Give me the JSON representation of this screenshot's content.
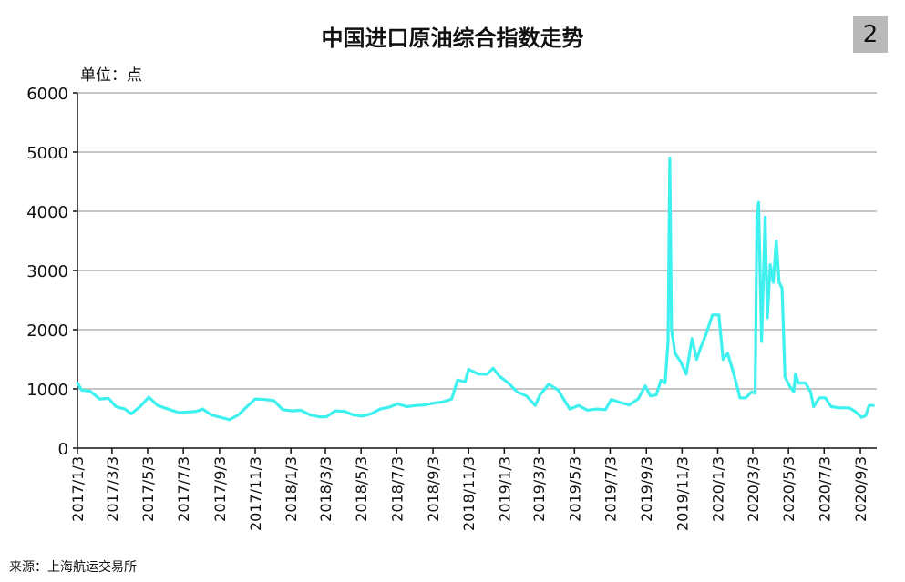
{
  "badge": "2",
  "unit": "单位：点",
  "source": "来源：上海航运交易所",
  "colors": {
    "line": "#3ef0ee",
    "grid": "#b4b4b4",
    "axis": "#111111"
  },
  "chart_data": {
    "type": "line",
    "title": "中国进口原油综合指数走势",
    "xlabel": "",
    "ylabel": "",
    "ylim": [
      0,
      6000
    ],
    "yticks": [
      0,
      1000,
      2000,
      3000,
      4000,
      5000,
      6000
    ],
    "grid": true,
    "legend": "none",
    "x_ticks": [
      "2017/1/3",
      "2017/3/3",
      "2017/5/3",
      "2017/7/3",
      "2017/9/3",
      "2017/11/3",
      "2018/1/3",
      "2018/3/3",
      "2018/5/3",
      "2018/7/3",
      "2018/9/3",
      "2018/11/3",
      "2019/1/3",
      "2019/3/3",
      "2019/5/3",
      "2019/7/3",
      "2019/9/3",
      "2019/11/3",
      "2020/1/3",
      "2020/3/3",
      "2020/5/3",
      "2020/7/3",
      "2020/9/3"
    ],
    "series": [
      {
        "name": "",
        "points": [
          [
            "2017-01-03",
            1100
          ],
          [
            "2017-01-10",
            980
          ],
          [
            "2017-01-25",
            960
          ],
          [
            "2017-02-10",
            830
          ],
          [
            "2017-02-25",
            840
          ],
          [
            "2017-03-10",
            700
          ],
          [
            "2017-03-25",
            660
          ],
          [
            "2017-04-05",
            580
          ],
          [
            "2017-04-20",
            700
          ],
          [
            "2017-05-05",
            860
          ],
          [
            "2017-05-20",
            720
          ],
          [
            "2017-06-10",
            650
          ],
          [
            "2017-06-25",
            600
          ],
          [
            "2017-07-10",
            610
          ],
          [
            "2017-07-25",
            620
          ],
          [
            "2017-08-05",
            660
          ],
          [
            "2017-08-20",
            560
          ],
          [
            "2017-09-05",
            520
          ],
          [
            "2017-09-20",
            480
          ],
          [
            "2017-10-05",
            560
          ],
          [
            "2017-10-20",
            700
          ],
          [
            "2017-11-03",
            830
          ],
          [
            "2017-11-20",
            820
          ],
          [
            "2017-12-05",
            800
          ],
          [
            "2017-12-20",
            650
          ],
          [
            "2018-01-05",
            630
          ],
          [
            "2018-01-20",
            640
          ],
          [
            "2018-02-05",
            560
          ],
          [
            "2018-02-20",
            530
          ],
          [
            "2018-03-05",
            530
          ],
          [
            "2018-03-20",
            630
          ],
          [
            "2018-04-05",
            620
          ],
          [
            "2018-04-20",
            560
          ],
          [
            "2018-05-05",
            540
          ],
          [
            "2018-05-20",
            580
          ],
          [
            "2018-06-05",
            660
          ],
          [
            "2018-06-20",
            690
          ],
          [
            "2018-07-05",
            750
          ],
          [
            "2018-07-20",
            700
          ],
          [
            "2018-08-05",
            720
          ],
          [
            "2018-08-20",
            730
          ],
          [
            "2018-09-05",
            760
          ],
          [
            "2018-09-20",
            780
          ],
          [
            "2018-10-05",
            830
          ],
          [
            "2018-10-15",
            1150
          ],
          [
            "2018-10-28",
            1120
          ],
          [
            "2018-11-03",
            1330
          ],
          [
            "2018-11-20",
            1250
          ],
          [
            "2018-12-05",
            1250
          ],
          [
            "2018-12-15",
            1350
          ],
          [
            "2018-12-25",
            1220
          ],
          [
            "2019-01-10",
            1100
          ],
          [
            "2019-01-25",
            950
          ],
          [
            "2019-02-10",
            880
          ],
          [
            "2019-02-25",
            720
          ],
          [
            "2019-03-05",
            900
          ],
          [
            "2019-03-20",
            1080
          ],
          [
            "2019-04-05",
            980
          ],
          [
            "2019-04-15",
            820
          ],
          [
            "2019-04-25",
            660
          ],
          [
            "2019-05-10",
            720
          ],
          [
            "2019-05-25",
            640
          ],
          [
            "2019-06-10",
            660
          ],
          [
            "2019-06-25",
            650
          ],
          [
            "2019-07-05",
            820
          ],
          [
            "2019-07-20",
            770
          ],
          [
            "2019-08-05",
            730
          ],
          [
            "2019-08-20",
            830
          ],
          [
            "2019-09-01",
            1050
          ],
          [
            "2019-09-10",
            880
          ],
          [
            "2019-09-20",
            900
          ],
          [
            "2019-09-28",
            1150
          ],
          [
            "2019-10-05",
            1100
          ],
          [
            "2019-10-10",
            1800
          ],
          [
            "2019-10-13",
            4900
          ],
          [
            "2019-10-16",
            2000
          ],
          [
            "2019-10-22",
            1600
          ],
          [
            "2019-11-01",
            1450
          ],
          [
            "2019-11-10",
            1250
          ],
          [
            "2019-11-20",
            1850
          ],
          [
            "2019-11-28",
            1500
          ],
          [
            "2019-12-05",
            1700
          ],
          [
            "2019-12-15",
            1950
          ],
          [
            "2019-12-25",
            2250
          ],
          [
            "2020-01-05",
            2250
          ],
          [
            "2020-01-12",
            1500
          ],
          [
            "2020-01-20",
            1600
          ],
          [
            "2020-02-01",
            1200
          ],
          [
            "2020-02-10",
            850
          ],
          [
            "2020-02-20",
            850
          ],
          [
            "2020-03-01",
            950
          ],
          [
            "2020-03-07",
            930
          ],
          [
            "2020-03-10",
            3900
          ],
          [
            "2020-03-13",
            4150
          ],
          [
            "2020-03-18",
            1800
          ],
          [
            "2020-03-24",
            3900
          ],
          [
            "2020-03-28",
            2200
          ],
          [
            "2020-04-02",
            3100
          ],
          [
            "2020-04-07",
            2800
          ],
          [
            "2020-04-12",
            3500
          ],
          [
            "2020-04-17",
            2800
          ],
          [
            "2020-04-22",
            2700
          ],
          [
            "2020-04-27",
            1200
          ],
          [
            "2020-05-05",
            1050
          ],
          [
            "2020-05-12",
            950
          ],
          [
            "2020-05-15",
            1250
          ],
          [
            "2020-05-20",
            1100
          ],
          [
            "2020-06-01",
            1100
          ],
          [
            "2020-06-10",
            950
          ],
          [
            "2020-06-15",
            700
          ],
          [
            "2020-06-25",
            850
          ],
          [
            "2020-07-05",
            850
          ],
          [
            "2020-07-15",
            700
          ],
          [
            "2020-07-30",
            680
          ],
          [
            "2020-08-15",
            680
          ],
          [
            "2020-08-25",
            620
          ],
          [
            "2020-09-05",
            520
          ],
          [
            "2020-09-12",
            550
          ],
          [
            "2020-09-18",
            720
          ],
          [
            "2020-09-25",
            720
          ]
        ]
      }
    ]
  }
}
